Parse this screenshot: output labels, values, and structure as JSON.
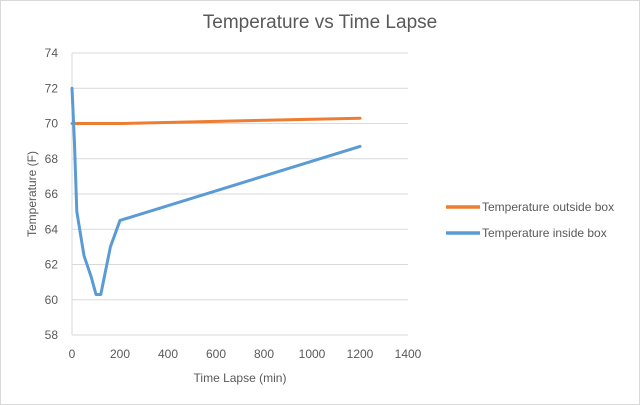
{
  "chart_data": {
    "type": "line",
    "title": "Temperature vs Time Lapse",
    "xlabel": "Time Lapse (min)",
    "ylabel": "Temperature  (F)",
    "xlim": [
      0,
      1400
    ],
    "ylim": [
      58,
      74
    ],
    "x_ticks": [
      0,
      200,
      400,
      600,
      800,
      1000,
      1200,
      1400
    ],
    "y_ticks": [
      58,
      60,
      62,
      64,
      66,
      68,
      70,
      72,
      74
    ],
    "grid": "horizontal",
    "legend_position": "right",
    "series": [
      {
        "name": "Temperature outside box",
        "color": "#ED7D31",
        "x": [
          0,
          200,
          1200
        ],
        "y": [
          70,
          70,
          70.3
        ]
      },
      {
        "name": "Temperature inside box",
        "color": "#5B9BD5",
        "x": [
          0,
          10,
          20,
          50,
          80,
          100,
          120,
          160,
          200,
          1200
        ],
        "y": [
          72,
          69,
          65,
          62.5,
          61.3,
          60.3,
          60.3,
          63,
          64.5,
          68.7
        ]
      }
    ]
  }
}
